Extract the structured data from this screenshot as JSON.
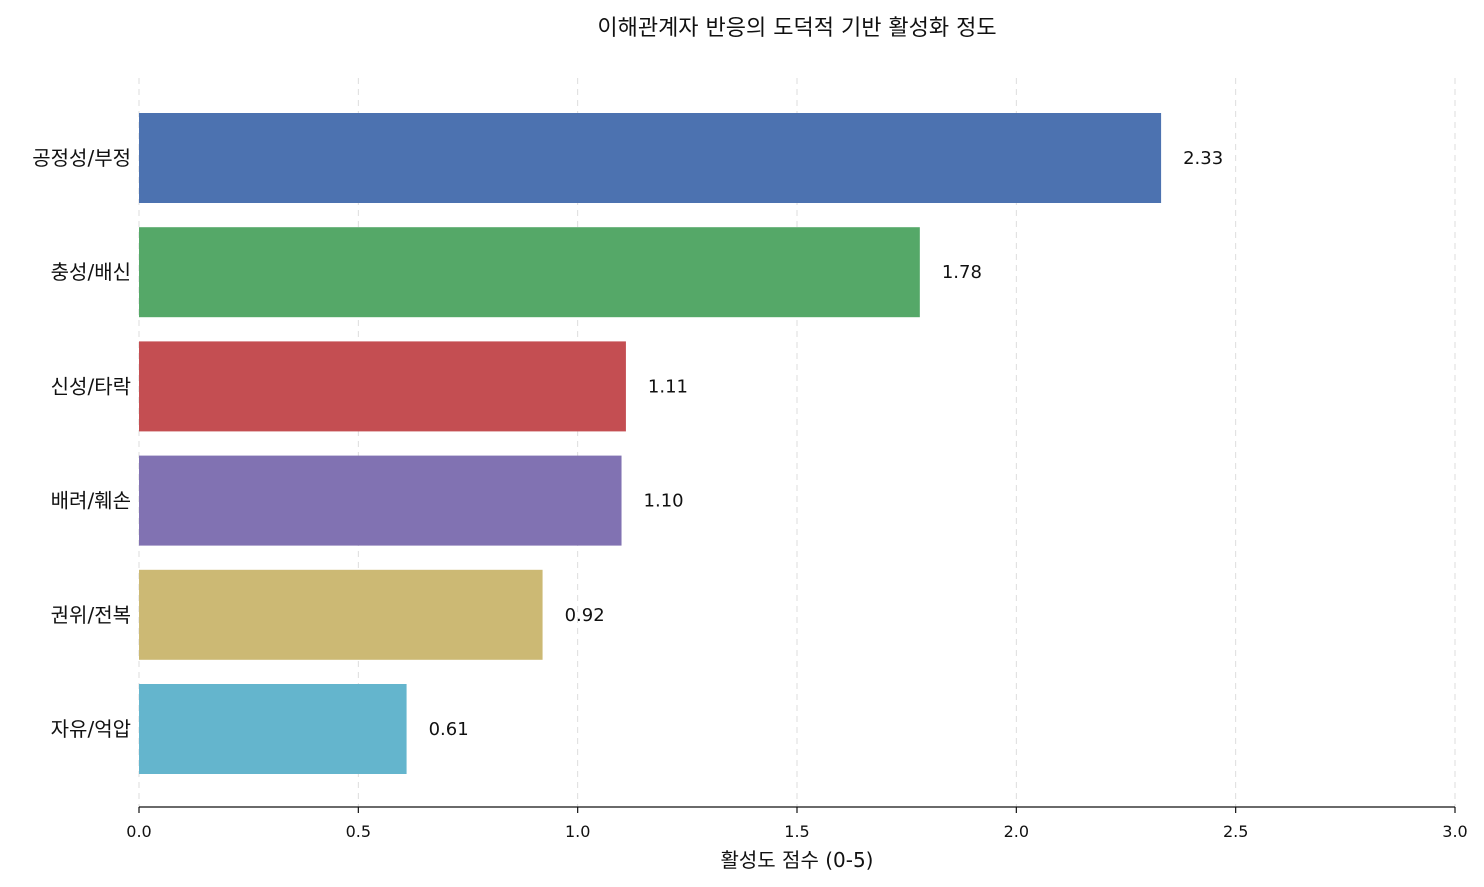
{
  "chart_data": {
    "type": "bar",
    "orientation": "horizontal",
    "title": "이해관계자 반응의 도덕적 기반 활성화 정도",
    "xlabel": "활성도 점수 (0-5)",
    "ylabel": "",
    "xlim": [
      0,
      3.0
    ],
    "xticks": [
      "0.0",
      "0.5",
      "1.0",
      "1.5",
      "2.0",
      "2.5",
      "3.0"
    ],
    "grid": "x-dashed",
    "categories": [
      "공정성/부정",
      "충성/배신",
      "신성/타락",
      "배려/훼손",
      "권위/전복",
      "자유/억압"
    ],
    "values": [
      2.33,
      1.78,
      1.11,
      1.1,
      0.92,
      0.61
    ],
    "value_labels": [
      "2.33",
      "1.78",
      "1.11",
      "1.10",
      "0.92",
      "0.61"
    ],
    "colors": [
      "#4c72b0",
      "#55a868",
      "#c44e52",
      "#8172b2",
      "#ccb974",
      "#64b5cd"
    ]
  }
}
